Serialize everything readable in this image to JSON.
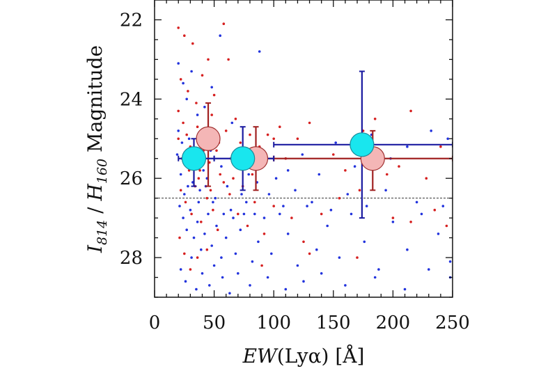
{
  "chart_data": {
    "type": "scatter",
    "title": "",
    "xlabel": {
      "italic": "EW",
      "rest": "(Lyα) [Å]"
    },
    "ylabel": {
      "i_main": "I",
      "i_sub": "814",
      "sep": " / ",
      "h_main": "H",
      "h_sub": "160",
      "rest": " Magnitude"
    },
    "xlim": [
      0,
      250
    ],
    "ylim": [
      29.0,
      21.5
    ],
    "y_inverted": true,
    "x_ticks": [
      "0",
      "50",
      "100",
      "150",
      "200",
      "250"
    ],
    "y_ticks": [
      "22",
      "24",
      "26",
      "28"
    ],
    "grid": false,
    "reference_line": {
      "y": 26.5,
      "style": "dashed"
    },
    "colors": {
      "red_points": "#d62020",
      "blue_points": "#2233dd",
      "red_bars": "#a02020",
      "blue_bars": "#1a1aa0",
      "pink_fill": "#f4b6b6",
      "pink_edge": "#a03030",
      "cyan_fill": "#19e6ee",
      "cyan_edge": "#1a8a9a"
    },
    "series": [
      {
        "marker": "small-dot",
        "color": "red",
        "points": [
          [
            20,
            22.2
          ],
          [
            25,
            22.4
          ],
          [
            32,
            22.6
          ],
          [
            45,
            23.0
          ],
          [
            58,
            22.1
          ],
          [
            22,
            23.5
          ],
          [
            28,
            23.8
          ],
          [
            35,
            24.1
          ],
          [
            40,
            23.4
          ],
          [
            50,
            23.9
          ],
          [
            62,
            23.0
          ],
          [
            20,
            24.3
          ],
          [
            24,
            24.6
          ],
          [
            27,
            24.9
          ],
          [
            30,
            25.2
          ],
          [
            33,
            25.4
          ],
          [
            36,
            24.7
          ],
          [
            38,
            25.8
          ],
          [
            42,
            25.0
          ],
          [
            46,
            25.6
          ],
          [
            48,
            24.4
          ],
          [
            52,
            25.3
          ],
          [
            55,
            25.9
          ],
          [
            60,
            24.8
          ],
          [
            64,
            25.5
          ],
          [
            68,
            24.5
          ],
          [
            72,
            25.1
          ],
          [
            76,
            25.7
          ],
          [
            80,
            24.9
          ],
          [
            85,
            25.4
          ],
          [
            88,
            25.2
          ],
          [
            95,
            24.9
          ],
          [
            100,
            25.0
          ],
          [
            105,
            24.7
          ],
          [
            110,
            25.5
          ],
          [
            120,
            25.0
          ],
          [
            130,
            24.6
          ],
          [
            150,
            25.4
          ],
          [
            160,
            25.8
          ],
          [
            175,
            24.8
          ],
          [
            185,
            24.5
          ],
          [
            195,
            25.9
          ],
          [
            205,
            25.7
          ],
          [
            215,
            24.3
          ],
          [
            228,
            26.0
          ],
          [
            240,
            25.2
          ],
          [
            22,
            26.3
          ],
          [
            26,
            26.6
          ],
          [
            31,
            26.9
          ],
          [
            34,
            26.2
          ],
          [
            39,
            27.1
          ],
          [
            44,
            26.5
          ],
          [
            49,
            26.8
          ],
          [
            53,
            27.3
          ],
          [
            58,
            26.1
          ],
          [
            63,
            26.4
          ],
          [
            70,
            26.9
          ],
          [
            78,
            27.2
          ],
          [
            84,
            26.6
          ],
          [
            92,
            27.4
          ],
          [
            100,
            26.7
          ],
          [
            115,
            27.0
          ],
          [
            125,
            27.6
          ],
          [
            140,
            26.9
          ],
          [
            155,
            26.5
          ],
          [
            172,
            26.3
          ],
          [
            200,
            27.0
          ],
          [
            215,
            27.1
          ],
          [
            235,
            26.8
          ],
          [
            245,
            27.2
          ],
          [
            20,
            25.0
          ],
          [
            23,
            25.5
          ],
          [
            29,
            25.8
          ],
          [
            37,
            26.0
          ],
          [
            41,
            25.3
          ],
          [
            47,
            26.3
          ],
          [
            54,
            25.1
          ],
          [
            66,
            26.0
          ],
          [
            74,
            26.2
          ],
          [
            82,
            25.9
          ],
          [
            21,
            27.5
          ],
          [
            25,
            27.9
          ],
          [
            30,
            28.3
          ],
          [
            36,
            28.0
          ],
          [
            44,
            27.8
          ],
          [
            90,
            28.2
          ],
          [
            130,
            27.9
          ],
          [
            170,
            28.0
          ]
        ]
      },
      {
        "marker": "small-dot",
        "color": "blue",
        "points": [
          [
            20,
            23.1
          ],
          [
            24,
            23.6
          ],
          [
            27,
            24.0
          ],
          [
            31,
            23.3
          ],
          [
            36,
            24.4
          ],
          [
            42,
            24.2
          ],
          [
            48,
            23.7
          ],
          [
            55,
            22.4
          ],
          [
            65,
            24.6
          ],
          [
            88,
            22.8
          ],
          [
            20,
            24.8
          ],
          [
            23,
            25.1
          ],
          [
            26,
            25.6
          ],
          [
            29,
            25.0
          ],
          [
            32,
            26.1
          ],
          [
            35,
            25.4
          ],
          [
            38,
            26.3
          ],
          [
            41,
            25.8
          ],
          [
            44,
            26.0
          ],
          [
            47,
            25.3
          ],
          [
            51,
            26.5
          ],
          [
            56,
            25.7
          ],
          [
            61,
            26.2
          ],
          [
            67,
            25.5
          ],
          [
            73,
            26.4
          ],
          [
            79,
            25.9
          ],
          [
            86,
            26.1
          ],
          [
            93,
            25.6
          ],
          [
            102,
            26.0
          ],
          [
            112,
            25.8
          ],
          [
            124,
            25.4
          ],
          [
            138,
            25.9
          ],
          [
            152,
            25.1
          ],
          [
            168,
            25.7
          ],
          [
            182,
            24.9
          ],
          [
            198,
            25.5
          ],
          [
            212,
            25.2
          ],
          [
            232,
            24.8
          ],
          [
            246,
            25.0
          ],
          [
            21,
            26.7
          ],
          [
            24,
            27.0
          ],
          [
            27,
            27.3
          ],
          [
            30,
            26.8
          ],
          [
            33,
            27.5
          ],
          [
            36,
            27.1
          ],
          [
            39,
            27.8
          ],
          [
            42,
            27.4
          ],
          [
            45,
            26.9
          ],
          [
            48,
            27.7
          ],
          [
            52,
            27.2
          ],
          [
            56,
            28.0
          ],
          [
            60,
            27.5
          ],
          [
            64,
            26.8
          ],
          [
            68,
            27.9
          ],
          [
            72,
            27.3
          ],
          [
            77,
            26.6
          ],
          [
            82,
            28.1
          ],
          [
            87,
            27.6
          ],
          [
            92,
            27.0
          ],
          [
            98,
            27.9
          ],
          [
            105,
            26.9
          ],
          [
            112,
            27.4
          ],
          [
            120,
            28.2
          ],
          [
            128,
            26.7
          ],
          [
            136,
            27.8
          ],
          [
            145,
            27.2
          ],
          [
            155,
            28.0
          ],
          [
            165,
            26.9
          ],
          [
            176,
            27.6
          ],
          [
            188,
            28.3
          ],
          [
            200,
            27.1
          ],
          [
            212,
            27.8
          ],
          [
            224,
            26.9
          ],
          [
            238,
            27.4
          ],
          [
            248,
            28.1
          ],
          [
            22,
            28.3
          ],
          [
            26,
            28.6
          ],
          [
            31,
            28.0
          ],
          [
            35,
            28.8
          ],
          [
            40,
            28.4
          ],
          [
            46,
            28.7
          ],
          [
            50,
            28.2
          ],
          [
            57,
            28.5
          ],
          [
            63,
            28.9
          ],
          [
            70,
            28.4
          ],
          [
            80,
            28.7
          ],
          [
            95,
            28.5
          ],
          [
            110,
            28.8
          ],
          [
            125,
            28.6
          ],
          [
            140,
            28.4
          ],
          [
            160,
            28.7
          ],
          [
            185,
            28.5
          ],
          [
            210,
            28.8
          ],
          [
            230,
            28.3
          ],
          [
            248,
            28.5
          ],
          [
            19,
            25.4
          ],
          [
            22,
            25.9
          ],
          [
            25,
            26.4
          ],
          [
            28,
            26.2
          ],
          [
            34,
            25.5
          ],
          [
            37,
            26.6
          ],
          [
            43,
            26.2
          ],
          [
            49,
            26.6
          ],
          [
            58,
            26.9
          ],
          [
            66,
            27.0
          ],
          [
            75,
            26.9
          ],
          [
            84,
            26.9
          ],
          [
            96,
            26.4
          ],
          [
            108,
            26.7
          ],
          [
            118,
            26.3
          ],
          [
            132,
            26.6
          ],
          [
            148,
            26.8
          ],
          [
            162,
            26.4
          ],
          [
            178,
            26.7
          ],
          [
            194,
            26.3
          ],
          [
            220,
            26.6
          ],
          [
            242,
            26.7
          ]
        ]
      },
      {
        "name": "",
        "marker": "large-circle",
        "color": "pink",
        "points": [
          {
            "x": 45,
            "y": 25.0,
            "x_err": [
              0,
              0
            ],
            "y_err": [
              0.9,
              1.2
            ]
          },
          {
            "x": 85,
            "y": 25.5,
            "x_err": [
              15,
              15
            ],
            "y_err": [
              0.8,
              0.8
            ]
          },
          {
            "x": 183,
            "y": 25.5,
            "x_err": [
              83,
              67
            ],
            "y_err": [
              0.7,
              0.8
            ]
          }
        ]
      },
      {
        "name": "",
        "marker": "large-circle",
        "color": "cyan",
        "points": [
          {
            "x": 33,
            "y": 25.5,
            "x_err": [
              13,
              17
            ],
            "y_err": [
              0.5,
              0.7
            ]
          },
          {
            "x": 74,
            "y": 25.5,
            "x_err": [
              24,
              26
            ],
            "y_err": [
              0.8,
              0.8
            ]
          },
          {
            "x": 174,
            "y": 25.15,
            "x_err": [
              74,
              76
            ],
            "y_err": [
              1.85,
              1.85
            ]
          }
        ]
      }
    ]
  }
}
